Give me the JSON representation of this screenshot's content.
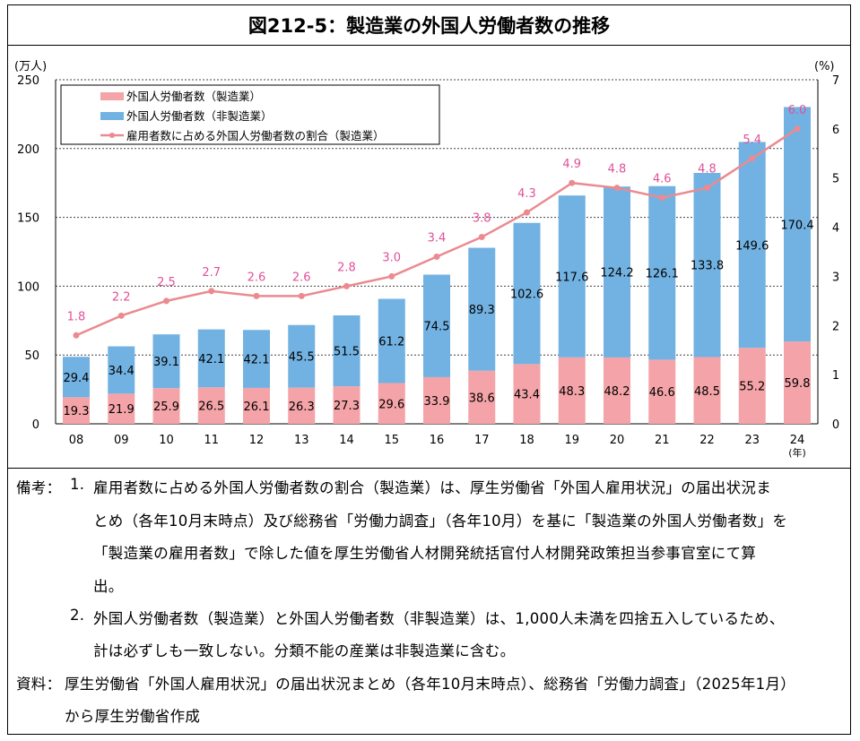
{
  "title": "図212-5：製造業の外国人労働者数の推移",
  "chart_data": {
    "type": "bar",
    "stacked": true,
    "categories": [
      "08",
      "09",
      "10",
      "11",
      "12",
      "13",
      "14",
      "15",
      "16",
      "17",
      "18",
      "19",
      "20",
      "21",
      "22",
      "23",
      "24"
    ],
    "x_unit": "(年)",
    "ylabel_left": "(万人)",
    "ylabel_right": "(%)",
    "ylim_left": [
      0,
      250
    ],
    "yticks_left": [
      0,
      50,
      100,
      150,
      200,
      250
    ],
    "ylim_right": [
      0,
      7
    ],
    "yticks_right": [
      0,
      1,
      2,
      3,
      4,
      5,
      6,
      7
    ],
    "grid": "horizontal dotted",
    "legend_position": "top-left",
    "series": [
      {
        "name": "外国人労働者数（製造業）",
        "kind": "bar",
        "axis": "left",
        "color": "#f4a4a8",
        "values": [
          19.3,
          21.9,
          25.9,
          26.5,
          26.1,
          26.3,
          27.3,
          29.6,
          33.9,
          38.6,
          43.4,
          48.3,
          48.2,
          46.6,
          48.5,
          55.2,
          59.8
        ]
      },
      {
        "name": "外国人労働者数（非製造業）",
        "kind": "bar",
        "axis": "left",
        "color": "#72b2e2",
        "values": [
          29.4,
          34.4,
          39.1,
          42.1,
          42.1,
          45.5,
          51.5,
          61.2,
          74.5,
          89.3,
          102.6,
          117.6,
          124.2,
          126.1,
          133.8,
          149.6,
          170.4
        ]
      },
      {
        "name": "雇用者数に占める外国人労働者数の割合（製造業）",
        "kind": "line",
        "axis": "right",
        "color": "#eb8a90",
        "label_color": "#e0509a",
        "values": [
          1.8,
          2.2,
          2.5,
          2.7,
          2.6,
          2.6,
          2.8,
          3.0,
          3.4,
          3.8,
          4.3,
          4.9,
          4.8,
          4.6,
          4.8,
          5.4,
          6.0
        ]
      }
    ]
  },
  "notes": {
    "label": "備考：",
    "items": [
      {
        "num": "1.",
        "lines": [
          "雇用者数に占める外国人労働者数の割合（製造業）は、厚生労働省「外国人雇用状況」の届出状況ま",
          "とめ（各年10月末時点）及び総務省「労働力調査」（各年10月）を基に「製造業の外国人労働者数」を",
          "「製造業の雇用者数」で除した値を厚生労働省人材開発統括官付人材開発政策担当参事官室にて算",
          "出。"
        ]
      },
      {
        "num": "2.",
        "lines": [
          "外国人労働者数（製造業）と外国人労働者数（非製造業）は、1,000人未満を四捨五入しているため、",
          "計は必ずしも一致しない。分類不能の産業は非製造業に含む。"
        ]
      }
    ]
  },
  "source": {
    "label": "資料：",
    "lines": [
      "厚生労働省「外国人雇用状況」の届出状況まとめ（各年10月末時点）、総務省「労働力調査」（2025年1月）",
      "から厚生労働省作成"
    ]
  }
}
